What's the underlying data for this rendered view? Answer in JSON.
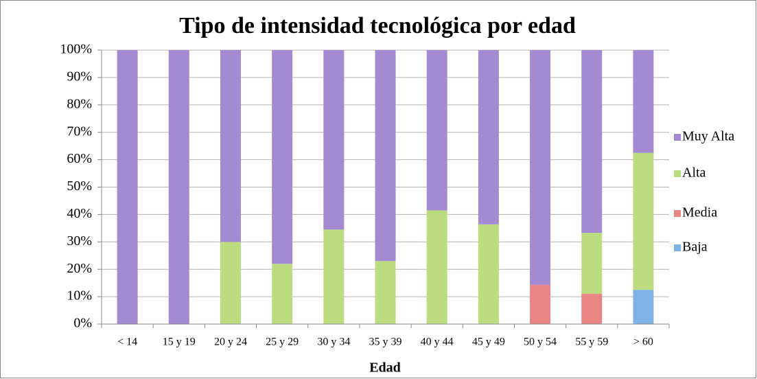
{
  "chart_data": {
    "type": "stacked_bar",
    "title": "Tipo de intensidad tecnológica por edad",
    "x_label": "Edad",
    "categories": [
      "< 14",
      "15 y 19",
      "20 y 24",
      "25 y 29",
      "30 y 34",
      "35 y 39",
      "40 y 44",
      "45 y 49",
      "50 y 54",
      "55 y 59",
      "> 60"
    ],
    "series": [
      {
        "name": "Baja",
        "color": "#7fb2e5",
        "values": [
          0,
          0,
          0,
          0,
          0,
          0,
          0,
          0,
          0,
          0,
          12.5
        ]
      },
      {
        "name": "Media",
        "color": "#ea8585",
        "values": [
          0,
          0,
          0,
          0,
          0,
          0,
          0,
          0,
          14.3,
          11.1,
          0
        ]
      },
      {
        "name": "Alta",
        "color": "#bcdc80",
        "values": [
          0,
          0,
          30,
          22,
          34.5,
          23,
          41.5,
          36.4,
          0,
          22.2,
          50
        ]
      },
      {
        "name": "Muy Alta",
        "color": "#a48ad0",
        "values": [
          100,
          100,
          70,
          78,
          65.5,
          77,
          58.5,
          63.6,
          85.7,
          66.7,
          37.5
        ]
      }
    ],
    "ylim": [
      0,
      100
    ],
    "yticks": [
      {
        "value": 0,
        "label": "0%"
      },
      {
        "value": 10,
        "label": "10%"
      },
      {
        "value": 20,
        "label": "20%"
      },
      {
        "value": 30,
        "label": "30%"
      },
      {
        "value": 40,
        "label": "40%"
      },
      {
        "value": 50,
        "label": "50%"
      },
      {
        "value": 60,
        "label": "60%"
      },
      {
        "value": 70,
        "label": "70%"
      },
      {
        "value": 80,
        "label": "80%"
      },
      {
        "value": 90,
        "label": "90%"
      },
      {
        "value": 100,
        "label": "100%"
      }
    ],
    "grid": true,
    "legend": "right"
  }
}
